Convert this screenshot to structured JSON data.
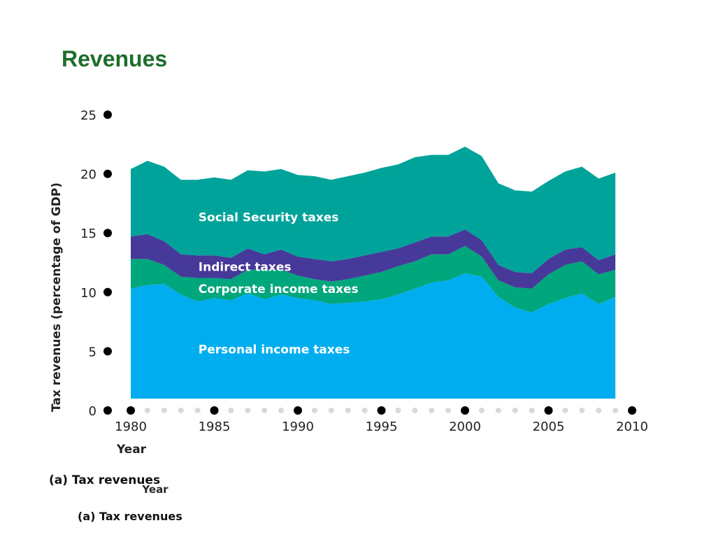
{
  "title": "Revenues",
  "chart_data": {
    "type": "area",
    "stacked": true,
    "xlabel": "Year",
    "ylabel": "Tax revenues (percentage of GDP)",
    "xlim": [
      1980,
      2010
    ],
    "ylim": [
      0,
      25
    ],
    "x_ticks": [
      1980,
      1985,
      1990,
      1995,
      2000,
      2005,
      2010
    ],
    "y_ticks": [
      0,
      5,
      10,
      15,
      20,
      25
    ],
    "x": [
      1980,
      1981,
      1982,
      1983,
      1984,
      1985,
      1986,
      1987,
      1988,
      1989,
      1990,
      1991,
      1992,
      1993,
      1994,
      1995,
      1996,
      1997,
      1998,
      1999,
      2000,
      2001,
      2002,
      2003,
      2004,
      2005,
      2006,
      2007,
      2008,
      2009
    ],
    "series": [
      {
        "name": "Personal income taxes",
        "color": "#00aeef",
        "values": [
          9.3,
          9.6,
          9.7,
          8.8,
          8.2,
          8.5,
          8.3,
          8.9,
          8.4,
          8.8,
          8.5,
          8.3,
          8.0,
          8.1,
          8.2,
          8.4,
          8.8,
          9.3,
          9.8,
          10.0,
          10.6,
          10.3,
          8.6,
          7.7,
          7.3,
          8.0,
          8.5,
          8.9,
          8.0,
          8.6
        ]
      },
      {
        "name": "Corporate income taxes",
        "color": "#00a67c",
        "values": [
          2.5,
          2.2,
          1.6,
          1.5,
          2.0,
          1.7,
          1.8,
          2.0,
          2.5,
          2.1,
          1.9,
          1.8,
          1.9,
          2.0,
          2.2,
          2.3,
          2.4,
          2.3,
          2.4,
          2.2,
          2.3,
          1.7,
          1.4,
          1.7,
          2.0,
          2.5,
          2.8,
          2.7,
          2.5,
          2.3
        ]
      },
      {
        "name": "Indirect taxes",
        "color": "#46399a",
        "values": [
          1.9,
          2.1,
          2.0,
          1.9,
          1.9,
          1.9,
          1.8,
          1.8,
          1.3,
          1.7,
          1.6,
          1.7,
          1.7,
          1.7,
          1.7,
          1.7,
          1.5,
          1.6,
          1.5,
          1.5,
          1.4,
          1.4,
          1.3,
          1.3,
          1.3,
          1.3,
          1.3,
          1.2,
          1.2,
          1.3
        ]
      },
      {
        "name": "Social Security taxes",
        "color": "#00a39a",
        "values": [
          5.7,
          6.2,
          6.3,
          6.3,
          6.4,
          6.6,
          6.6,
          6.6,
          7.0,
          6.8,
          6.9,
          7.0,
          6.9,
          7.0,
          7.0,
          7.1,
          7.1,
          7.2,
          6.9,
          6.9,
          7.0,
          7.1,
          6.9,
          6.9,
          6.9,
          6.6,
          6.6,
          6.8,
          6.9,
          6.9
        ]
      }
    ]
  },
  "captions": {
    "primary": "(a) Tax revenues",
    "stray_year": "Year",
    "secondary": "(a) Tax revenues"
  }
}
